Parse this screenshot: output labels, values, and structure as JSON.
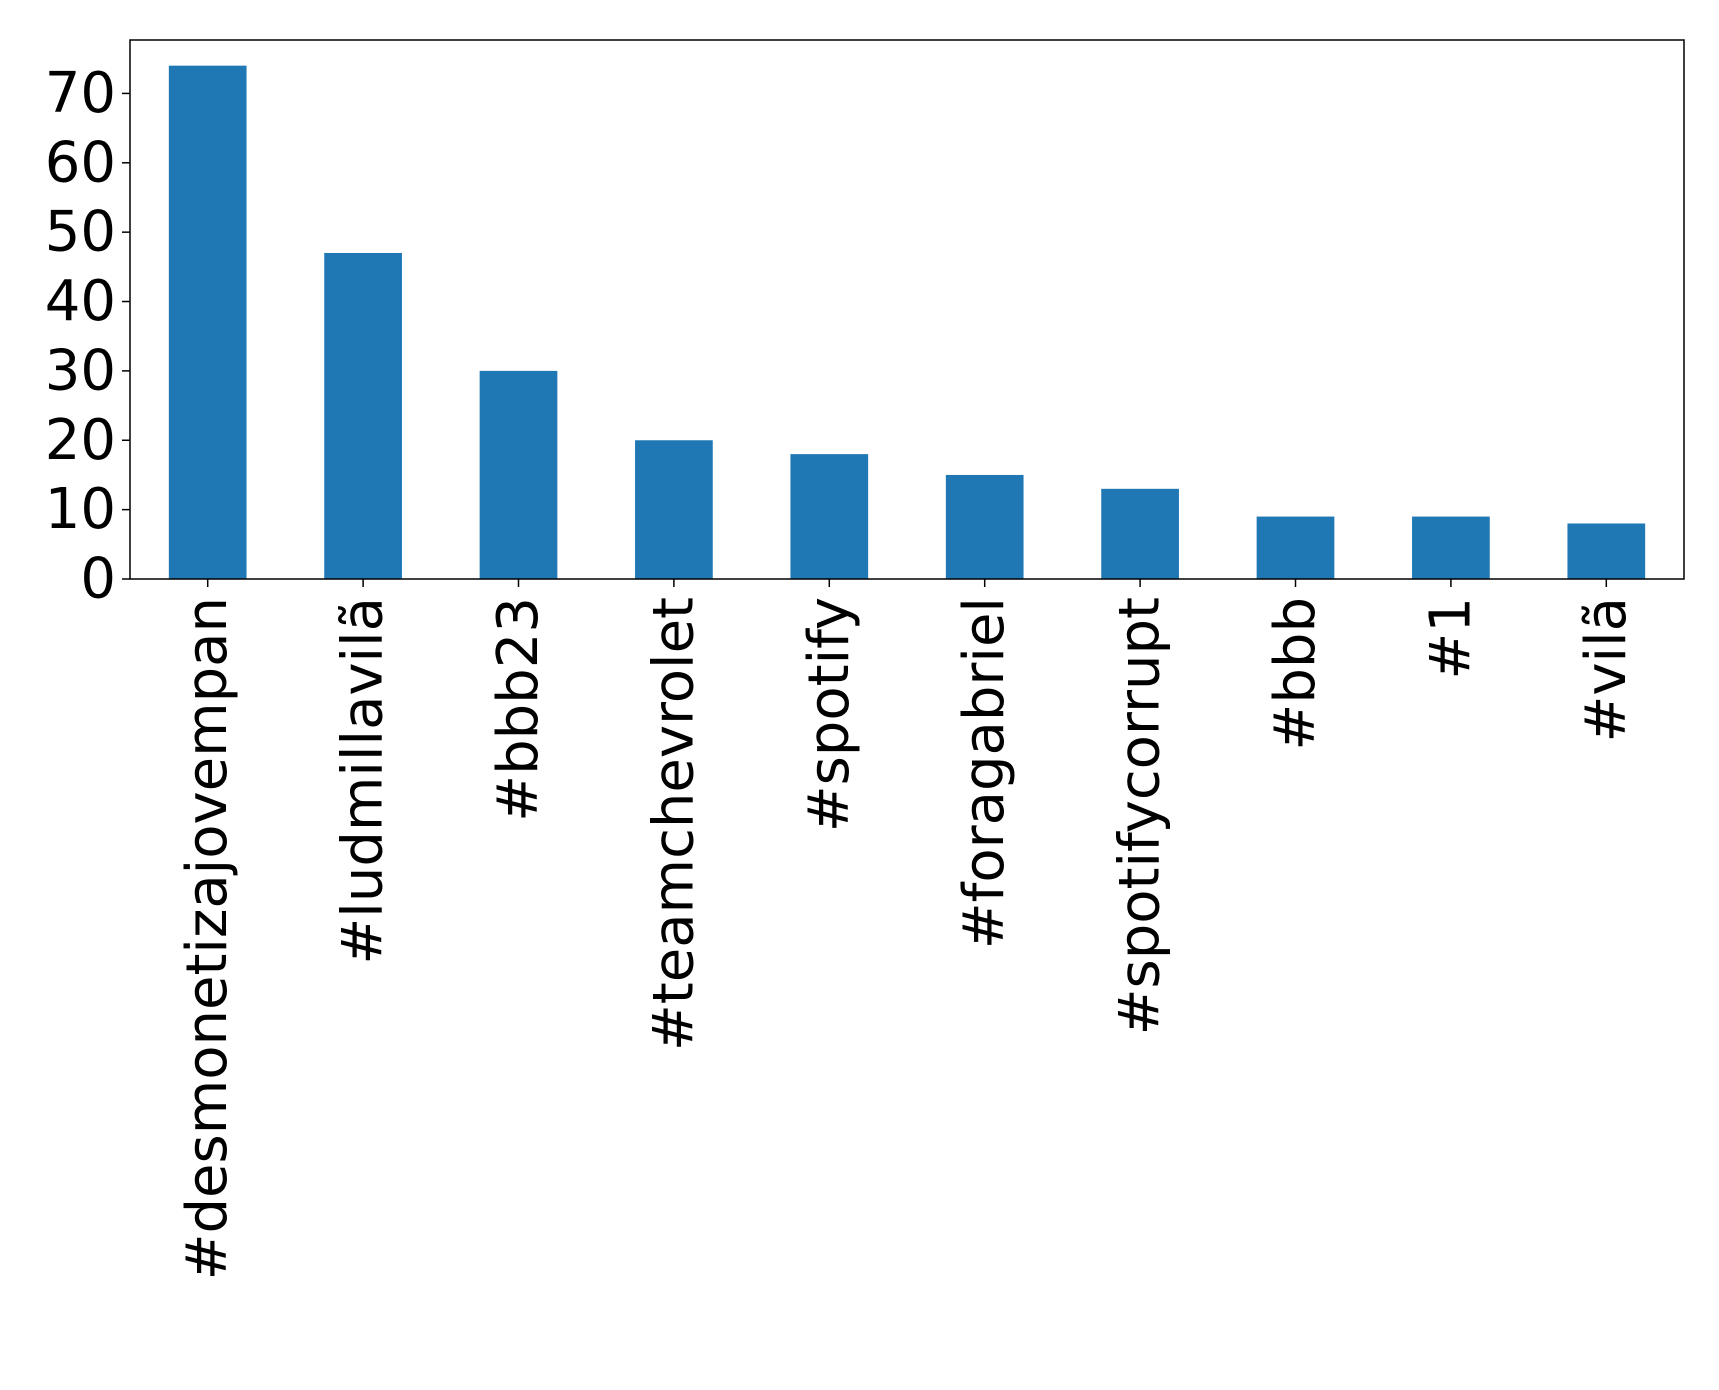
{
  "chart_data": {
    "type": "bar",
    "title": "",
    "xlabel": "",
    "ylabel": "",
    "categories": [
      "#desmonetizajovempan",
      "#ludmillavilã",
      "#bbb23",
      "#teamchevrolet",
      "#spotify",
      "#foragabriel",
      "#spotifycorrupt",
      "#bbb",
      "#1",
      "#vilã"
    ],
    "values": [
      74,
      47,
      30,
      20,
      18,
      15,
      13,
      9,
      9,
      8
    ],
    "ylim": [
      0,
      77.7
    ],
    "yticks": [
      0,
      10,
      20,
      30,
      40,
      50,
      60,
      70
    ],
    "bar_color": "#1f77b4",
    "grid": false,
    "legend": "none",
    "xtick_rotation": "vertical"
  }
}
